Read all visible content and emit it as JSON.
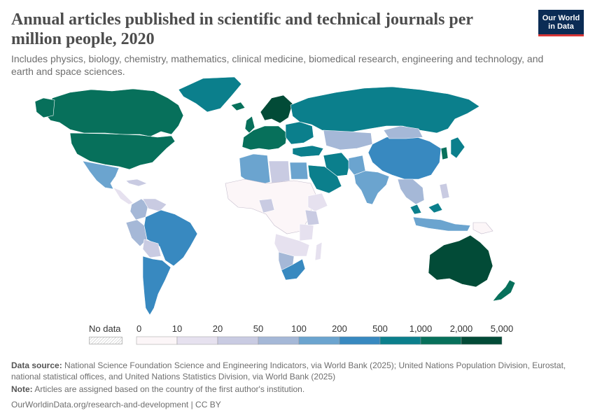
{
  "header": {
    "title": "Annual articles published in scientific and technical journals per million people, 2020",
    "subtitle": "Includes physics, biology, chemistry, mathematics, clinical medicine, biomedical research, engineering and technology, and earth and space sciences.",
    "logo_line1": "Our World",
    "logo_line2": "in Data"
  },
  "legend": {
    "no_data_label": "No data",
    "bins": [
      {
        "from": "0",
        "to": "10",
        "color": "#fcf6f8"
      },
      {
        "from": "10",
        "to": "20",
        "color": "#e6e1ef"
      },
      {
        "from": "20",
        "to": "50",
        "color": "#c9cbe2"
      },
      {
        "from": "50",
        "to": "100",
        "color": "#a5b8d7"
      },
      {
        "from": "100",
        "to": "200",
        "color": "#6ba4cf"
      },
      {
        "from": "200",
        "to": "500",
        "color": "#3889c0"
      },
      {
        "from": "500",
        "to": "1,000",
        "color": "#0b7f8c"
      },
      {
        "from": "1,000",
        "to": "2,000",
        "color": "#07705b"
      },
      {
        "from": "2,000",
        "to": "5,000",
        "color": "#024b37"
      }
    ],
    "tick_labels": [
      "0",
      "10",
      "20",
      "50",
      "100",
      "200",
      "500",
      "1,000",
      "2,000",
      "5,000"
    ]
  },
  "chart_data": {
    "type": "choropleth",
    "title": "Annual articles published in scientific and technical journals per million people, 2020",
    "unit": "articles per million people",
    "year": 2020,
    "regions": [
      {
        "name": "Canada",
        "bin": "1,000–2,000"
      },
      {
        "name": "United States",
        "bin": "1,000–2,000"
      },
      {
        "name": "Greenland",
        "bin": "500–1,000"
      },
      {
        "name": "Mexico",
        "bin": "100–200"
      },
      {
        "name": "Central America",
        "bin": "10–20"
      },
      {
        "name": "Colombia",
        "bin": "50–100"
      },
      {
        "name": "Venezuela",
        "bin": "20–50"
      },
      {
        "name": "Peru",
        "bin": "50–100"
      },
      {
        "name": "Brazil",
        "bin": "200–500"
      },
      {
        "name": "Bolivia",
        "bin": "20–50"
      },
      {
        "name": "Chile",
        "bin": "200–500"
      },
      {
        "name": "Argentina",
        "bin": "200–500"
      },
      {
        "name": "Paraguay",
        "bin": "20–50"
      },
      {
        "name": "Uruguay",
        "bin": "200–500"
      },
      {
        "name": "Iceland",
        "bin": "1,000–2,000"
      },
      {
        "name": "United Kingdom",
        "bin": "1,000–2,000"
      },
      {
        "name": "Nordic countries",
        "bin": "2,000–5,000"
      },
      {
        "name": "Western Europe",
        "bin": "1,000–2,000"
      },
      {
        "name": "Eastern Europe",
        "bin": "500–1,000"
      },
      {
        "name": "Russia",
        "bin": "500–1,000"
      },
      {
        "name": "Kazakhstan",
        "bin": "50–100"
      },
      {
        "name": "Turkey",
        "bin": "500–1,000"
      },
      {
        "name": "Iran",
        "bin": "500–1,000"
      },
      {
        "name": "Saudi Arabia",
        "bin": "500–1,000"
      },
      {
        "name": "Egypt",
        "bin": "100–200"
      },
      {
        "name": "Libya",
        "bin": "20–50"
      },
      {
        "name": "Algeria",
        "bin": "100–200"
      },
      {
        "name": "Morocco",
        "bin": "100–200"
      },
      {
        "name": "Sahel and Central Africa",
        "bin": "0–10"
      },
      {
        "name": "Nigeria",
        "bin": "20–50"
      },
      {
        "name": "Kenya",
        "bin": "20–50"
      },
      {
        "name": "Ethiopia",
        "bin": "10–20"
      },
      {
        "name": "Tanzania",
        "bin": "10–20"
      },
      {
        "name": "Namibia",
        "bin": "50–100"
      },
      {
        "name": "Botswana",
        "bin": "50–100"
      },
      {
        "name": "South Africa",
        "bin": "200–500"
      },
      {
        "name": "India",
        "bin": "100–200"
      },
      {
        "name": "Pakistan",
        "bin": "100–200"
      },
      {
        "name": "China",
        "bin": "200–500"
      },
      {
        "name": "Mongolia",
        "bin": "50–100"
      },
      {
        "name": "Japan",
        "bin": "500–1,000"
      },
      {
        "name": "South Korea",
        "bin": "1,000–2,000"
      },
      {
        "name": "Southeast Asia",
        "bin": "50–100"
      },
      {
        "name": "Malaysia",
        "bin": "500–1,000"
      },
      {
        "name": "Indonesia",
        "bin": "100–200"
      },
      {
        "name": "Papua New Guinea",
        "bin": "0–10"
      },
      {
        "name": "Australia",
        "bin": "2,000–5,000"
      },
      {
        "name": "New Zealand",
        "bin": "1,000–2,000"
      }
    ]
  },
  "footer": {
    "source_label": "Data source:",
    "source_text": "National Science Foundation Science and Engineering Indicators, via World Bank (2025); United Nations Population Division, Eurostat, national statistical offices, and United Nations Statistics Division, via World Bank (2025)",
    "note_label": "Note:",
    "note_text": "Articles are assigned based on the country of the first author's institution.",
    "url_text": "OurWorldinData.org/research-and-development | CC BY"
  }
}
